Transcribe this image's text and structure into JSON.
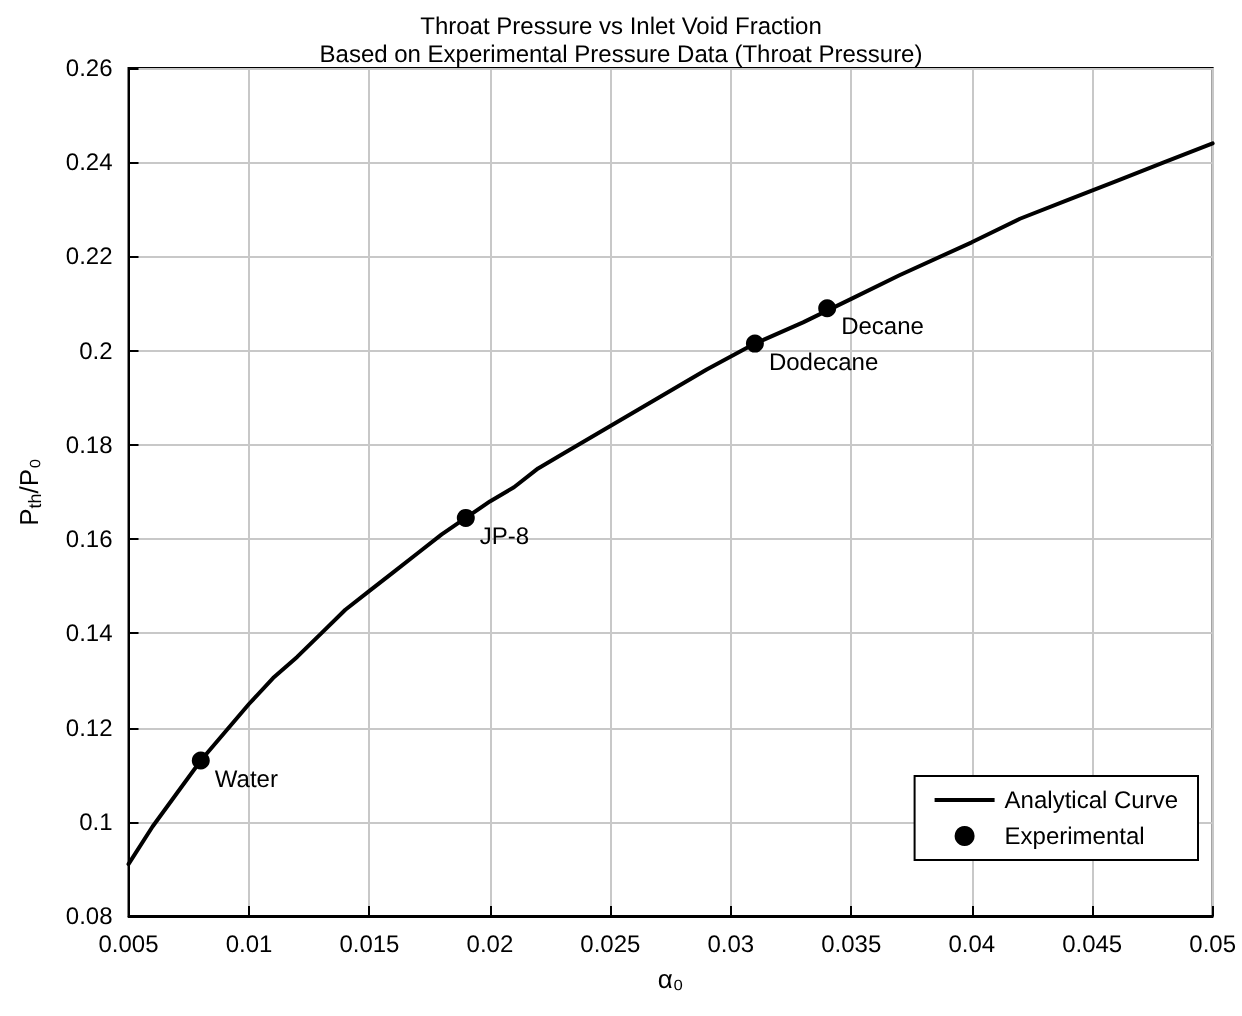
{
  "chart_data": {
    "type": "line",
    "title": "Throat Pressure vs Inlet Void Fraction",
    "subtitle": "Based on Experimental Pressure Data (Throat Pressure)",
    "xlabel": "α₀",
    "ylabel": "P$_{th}$/P₀",
    "series": [
      {
        "name": "Analytical Curve",
        "type": "line",
        "color": "#000000",
        "marker": "none",
        "line_style": "solid",
        "x": [
          0.005,
          0.006,
          0.007,
          0.008,
          0.009,
          0.01,
          0.011,
          0.012,
          0.013,
          0.014,
          0.015,
          0.016,
          0.017,
          0.018,
          0.019,
          0.02,
          0.021,
          0.022,
          0.023,
          0.025,
          0.027,
          0.029,
          0.031,
          0.033,
          0.035,
          0.037,
          0.04,
          0.042,
          0.044,
          0.046,
          0.048,
          0.05
        ],
        "values": [
          0.091,
          0.099,
          0.106,
          0.113,
          0.119,
          0.125,
          0.1305,
          0.135,
          0.14,
          0.145,
          0.149,
          0.153,
          0.157,
          0.161,
          0.1645,
          0.168,
          0.171,
          0.175,
          0.178,
          0.184,
          0.19,
          0.196,
          0.2015,
          0.206,
          0.211,
          0.216,
          0.223,
          0.228,
          0.232,
          0.236,
          0.24,
          0.244
        ]
      },
      {
        "name": "Experimental",
        "type": "scatter",
        "color": "#000000",
        "marker": "circle",
        "x": [
          0.008,
          0.019,
          0.031,
          0.034
        ],
        "values": [
          0.113,
          0.1645,
          0.2015,
          0.209
        ]
      }
    ],
    "annotations": [
      {
        "text": "Water",
        "x": 0.008,
        "y": 0.113
      },
      {
        "text": "JP-8",
        "x": 0.019,
        "y": 0.1645
      },
      {
        "text": "Dodecane",
        "x": 0.031,
        "y": 0.2015
      },
      {
        "text": "Decane",
        "x": 0.034,
        "y": 0.209
      }
    ],
    "xlim": [
      0.005,
      0.05
    ],
    "xticks": [
      0.005,
      0.01,
      0.015,
      0.02,
      0.025,
      0.03,
      0.035,
      0.04,
      0.045,
      0.05
    ],
    "ylim": [
      0.08,
      0.26
    ],
    "yticks": [
      0.08,
      0.1,
      0.12,
      0.14,
      0.16,
      0.18,
      0.2,
      0.22,
      0.24,
      0.26
    ],
    "grid": true,
    "legend": "bottom right"
  }
}
